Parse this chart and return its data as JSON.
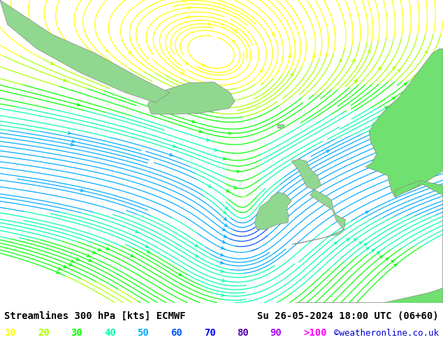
{
  "title_left": "Streamlines 300 hPa [kts] ECMWF",
  "title_right": "Su 26-05-2024 18:00 UTC (06+60)",
  "credit": "©weatheronline.co.uk",
  "legend_values": [
    "10",
    "20",
    "30",
    "40",
    "50",
    "60",
    "70",
    "80",
    "90",
    ">100"
  ],
  "legend_colors": [
    "#ffff00",
    "#aaff00",
    "#00ff00",
    "#00ffaa",
    "#00aaff",
    "#0055ff",
    "#0000ff",
    "#5500aa",
    "#aa00ff",
    "#ff00ff"
  ],
  "background_color": "#d0d0d0",
  "land_color_green": "#90d890",
  "land_color_bright": "#70e070",
  "coast_color": "#888888",
  "figsize": [
    6.34,
    4.9
  ],
  "dpi": 100,
  "font_color_left": "#000000",
  "font_color_right": "#000000",
  "font_color_credit": "#0000cc",
  "font_size_title": 10,
  "font_size_legend": 10,
  "map_lon_min": -45,
  "map_lon_max": 15,
  "map_lat_min": 44,
  "map_lat_max": 75
}
